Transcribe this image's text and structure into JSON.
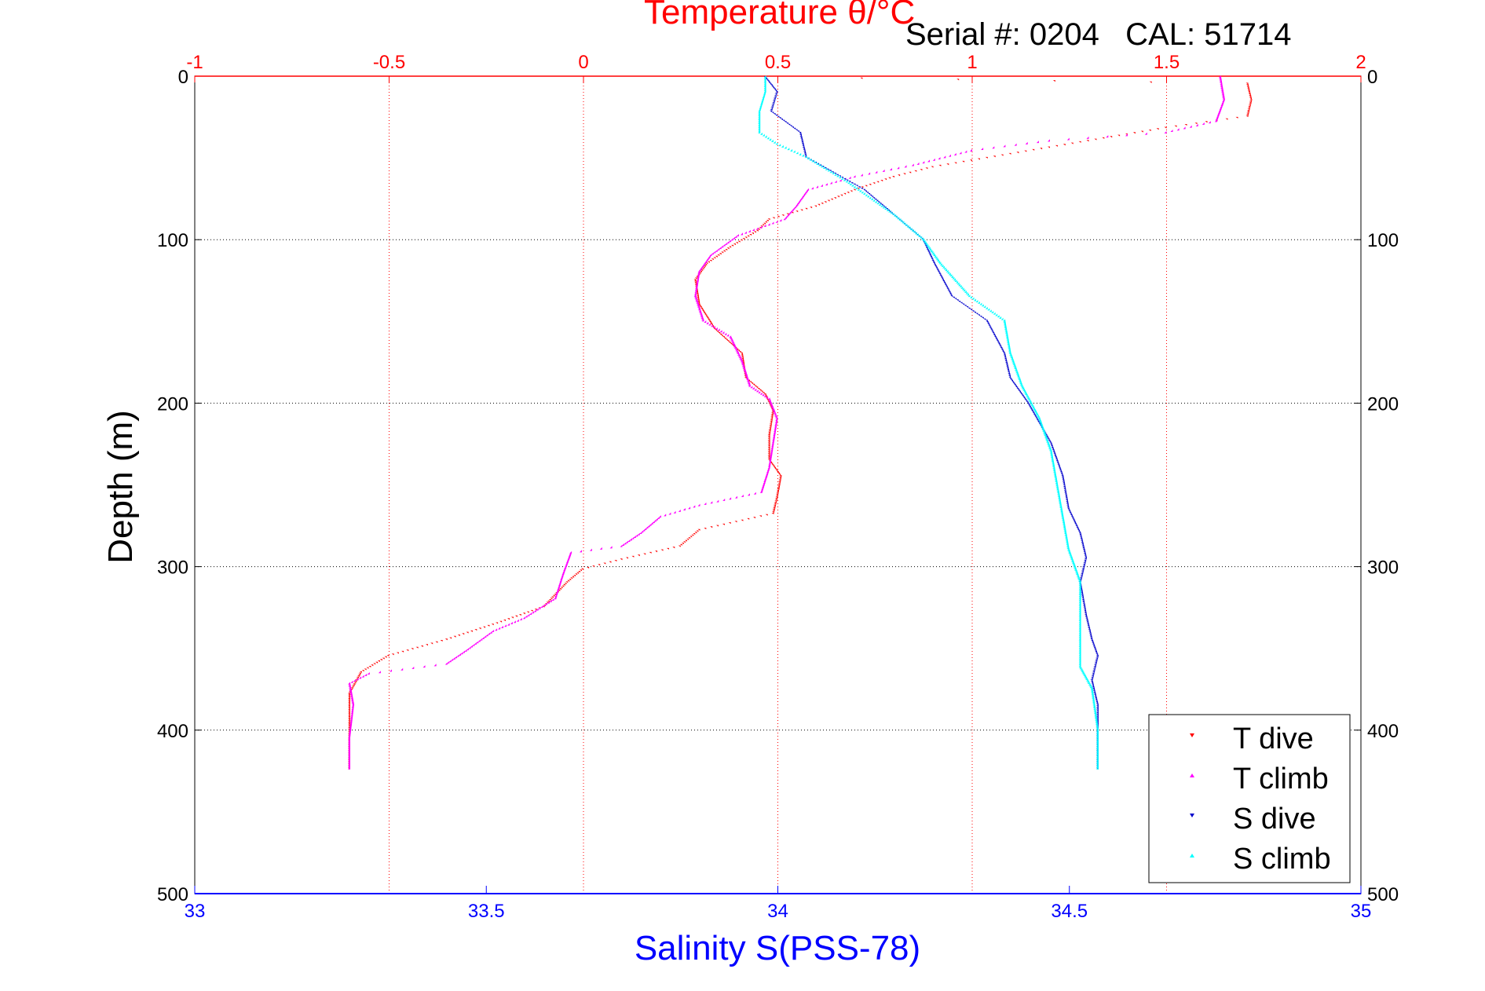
{
  "header": {
    "top_axis_title": "Temperature θ/°C",
    "serial_text": "Serial #: 0204   CAL: 51714"
  },
  "axes": {
    "ylabel": "Depth (m)",
    "xlabel_bottom": "Salinity S(PSS-78)"
  },
  "colors": {
    "temperature_axis": "#ff0000",
    "salinity_axis": "#0000ff",
    "t_dive": "#ff0000",
    "t_climb": "#ff00ff",
    "s_dive": "#0000cc",
    "s_climb": "#00ffff"
  },
  "chart_data": {
    "type": "scatter",
    "y": {
      "label": "Depth (m)",
      "range": [
        0,
        500
      ],
      "reversed": true,
      "ticks": [
        0,
        100,
        200,
        300,
        400,
        500
      ]
    },
    "x_top": {
      "label": "Temperature θ/°C",
      "range": [
        -1,
        2
      ],
      "ticks": [
        -1,
        -0.5,
        0,
        0.5,
        1,
        1.5,
        2
      ],
      "tick_labels": [
        "-1",
        "-0.5",
        "0",
        "0.5",
        "1",
        "1.5",
        "2"
      ]
    },
    "x_bottom": {
      "label": "Salinity S(PSS-78)",
      "range": [
        33,
        35
      ],
      "ticks": [
        33,
        33.5,
        34,
        34.5,
        35
      ],
      "tick_labels": [
        "33",
        "33.5",
        "34",
        "34.5",
        "35"
      ]
    },
    "grid": true,
    "legend_position": "bottom-right",
    "series": [
      {
        "name": "T dive",
        "axis": "top",
        "color": "#ff0000",
        "marker": "triangle-down",
        "points": [
          [
            0.47,
            1
          ],
          [
            1.71,
            5
          ],
          [
            1.72,
            15
          ],
          [
            1.71,
            25
          ],
          [
            1.5,
            32
          ],
          [
            1.3,
            40
          ],
          [
            1.1,
            48
          ],
          [
            0.9,
            56
          ],
          [
            0.8,
            62
          ],
          [
            0.7,
            70
          ],
          [
            0.6,
            80
          ],
          [
            0.48,
            88
          ],
          [
            0.45,
            95
          ],
          [
            0.38,
            105
          ],
          [
            0.32,
            115
          ],
          [
            0.29,
            125
          ],
          [
            0.3,
            140
          ],
          [
            0.34,
            155
          ],
          [
            0.41,
            170
          ],
          [
            0.42,
            185
          ],
          [
            0.47,
            195
          ],
          [
            0.49,
            205
          ],
          [
            0.48,
            220
          ],
          [
            0.48,
            235
          ],
          [
            0.51,
            245
          ],
          [
            0.5,
            258
          ],
          [
            0.49,
            268
          ],
          [
            0.3,
            278
          ],
          [
            0.25,
            288
          ],
          [
            0.1,
            296
          ],
          [
            0.0,
            302
          ],
          [
            -0.04,
            310
          ],
          [
            -0.1,
            325
          ],
          [
            -0.22,
            335
          ],
          [
            -0.35,
            345
          ],
          [
            -0.5,
            355
          ],
          [
            -0.57,
            365
          ],
          [
            -0.6,
            378
          ],
          [
            -0.6,
            400
          ],
          [
            -0.6,
            424
          ]
        ]
      },
      {
        "name": "T climb",
        "axis": "top",
        "color": "#ff00ff",
        "marker": "triangle",
        "points": [
          [
            1.64,
            1
          ],
          [
            1.65,
            15
          ],
          [
            1.63,
            28
          ],
          [
            1.5,
            35
          ],
          [
            1.2,
            40
          ],
          [
            1.0,
            46
          ],
          [
            0.85,
            55
          ],
          [
            0.7,
            62
          ],
          [
            0.58,
            70
          ],
          [
            0.55,
            80
          ],
          [
            0.52,
            88
          ],
          [
            0.4,
            98
          ],
          [
            0.33,
            110
          ],
          [
            0.3,
            120
          ],
          [
            0.29,
            135
          ],
          [
            0.31,
            150
          ],
          [
            0.38,
            160
          ],
          [
            0.41,
            175
          ],
          [
            0.43,
            190
          ],
          [
            0.48,
            198
          ],
          [
            0.5,
            210
          ],
          [
            0.49,
            225
          ],
          [
            0.48,
            240
          ],
          [
            0.46,
            255
          ],
          [
            0.3,
            263
          ],
          [
            0.2,
            270
          ],
          [
            0.15,
            280
          ],
          [
            0.1,
            288
          ],
          [
            -0.03,
            292
          ],
          [
            -0.05,
            305
          ],
          [
            -0.07,
            320
          ],
          [
            -0.15,
            332
          ],
          [
            -0.23,
            340
          ],
          [
            -0.3,
            352
          ],
          [
            -0.35,
            360
          ],
          [
            -0.55,
            366
          ],
          [
            -0.6,
            372
          ],
          [
            -0.59,
            385
          ],
          [
            -0.6,
            405
          ],
          [
            -0.6,
            424
          ]
        ]
      },
      {
        "name": "S dive",
        "axis": "bottom",
        "color": "#0000cc",
        "marker": "triangle-down",
        "points": [
          [
            33.98,
            1
          ],
          [
            34.0,
            10
          ],
          [
            33.99,
            22
          ],
          [
            34.04,
            35
          ],
          [
            34.05,
            50
          ],
          [
            34.1,
            60
          ],
          [
            34.15,
            70
          ],
          [
            34.2,
            85
          ],
          [
            34.25,
            100
          ],
          [
            34.27,
            115
          ],
          [
            34.3,
            135
          ],
          [
            34.36,
            150
          ],
          [
            34.39,
            170
          ],
          [
            34.4,
            185
          ],
          [
            34.43,
            200
          ],
          [
            34.47,
            225
          ],
          [
            34.49,
            245
          ],
          [
            34.5,
            265
          ],
          [
            34.52,
            280
          ],
          [
            34.53,
            295
          ],
          [
            34.52,
            310
          ],
          [
            34.53,
            330
          ],
          [
            34.54,
            345
          ],
          [
            34.55,
            355
          ],
          [
            34.54,
            370
          ],
          [
            34.55,
            385
          ],
          [
            34.55,
            405
          ],
          [
            34.55,
            424
          ]
        ]
      },
      {
        "name": "S climb",
        "axis": "bottom",
        "color": "#00ffff",
        "marker": "triangle",
        "points": [
          [
            33.98,
            1
          ],
          [
            33.98,
            10
          ],
          [
            33.97,
            22
          ],
          [
            33.97,
            35
          ],
          [
            34.0,
            42
          ],
          [
            34.05,
            50
          ],
          [
            34.12,
            65
          ],
          [
            34.2,
            85
          ],
          [
            34.25,
            100
          ],
          [
            34.28,
            115
          ],
          [
            34.33,
            135
          ],
          [
            34.39,
            150
          ],
          [
            34.4,
            170
          ],
          [
            34.42,
            190
          ],
          [
            34.45,
            210
          ],
          [
            34.47,
            230
          ],
          [
            34.48,
            250
          ],
          [
            34.49,
            270
          ],
          [
            34.5,
            290
          ],
          [
            34.52,
            310
          ],
          [
            34.52,
            335
          ],
          [
            34.52,
            350
          ],
          [
            34.52,
            362
          ],
          [
            34.54,
            375
          ],
          [
            34.55,
            400
          ],
          [
            34.55,
            424
          ]
        ]
      }
    ]
  },
  "legend": {
    "items": [
      {
        "label": "T dive",
        "color": "#ff0000"
      },
      {
        "label": "T climb",
        "color": "#ff00ff"
      },
      {
        "label": "S dive",
        "color": "#0000cc"
      },
      {
        "label": "S climb",
        "color": "#00ffff"
      }
    ]
  }
}
